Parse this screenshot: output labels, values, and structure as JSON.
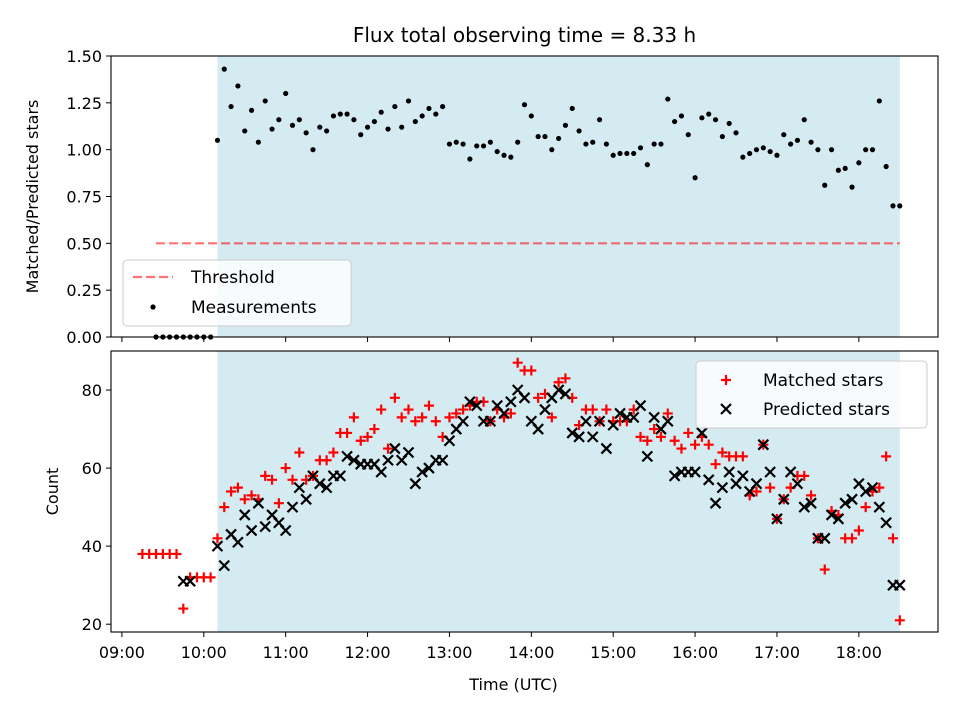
{
  "title": "Flux total observing time = 8.33 h",
  "colors": {
    "span": "#add8e6",
    "threshold": "#ff0000",
    "measurement": "#000000",
    "matched": "#ff0000",
    "predicted": "#000000"
  },
  "chart_data": [
    {
      "type": "scatter",
      "ylabel": "Matched/Predicted stars",
      "ylim": [
        0,
        1.5
      ],
      "yticks": [
        "0.00",
        "0.25",
        "0.50",
        "0.75",
        "1.00",
        "1.25",
        "1.50"
      ],
      "shaded_span": {
        "start": "10:10",
        "end": "18:30"
      },
      "threshold": {
        "label": "Threshold",
        "value": 0.5,
        "x_start": "09:25",
        "x_end": "18:30"
      },
      "legend_position": "lower-left",
      "series": [
        {
          "name": "Measurements",
          "x": [
            "09:25",
            "09:30",
            "09:35",
            "09:40",
            "09:45",
            "09:50",
            "09:55",
            "10:00",
            "10:05",
            "10:10",
            "10:15",
            "10:20",
            "10:25",
            "10:30",
            "10:35",
            "10:40",
            "10:45",
            "10:50",
            "10:55",
            "11:00",
            "11:05",
            "11:10",
            "11:15",
            "11:20",
            "11:25",
            "11:30",
            "11:35",
            "11:40",
            "11:45",
            "11:50",
            "11:55",
            "12:00",
            "12:05",
            "12:10",
            "12:15",
            "12:20",
            "12:25",
            "12:30",
            "12:35",
            "12:40",
            "12:45",
            "12:50",
            "12:55",
            "13:00",
            "13:05",
            "13:10",
            "13:15",
            "13:20",
            "13:25",
            "13:30",
            "13:35",
            "13:40",
            "13:45",
            "13:50",
            "13:55",
            "14:00",
            "14:05",
            "14:10",
            "14:15",
            "14:20",
            "14:25",
            "14:30",
            "14:35",
            "14:40",
            "14:45",
            "14:50",
            "14:55",
            "15:00",
            "15:05",
            "15:10",
            "15:15",
            "15:20",
            "15:25",
            "15:30",
            "15:35",
            "15:40",
            "15:45",
            "15:50",
            "15:55",
            "16:00",
            "16:05",
            "16:10",
            "16:15",
            "16:20",
            "16:25",
            "16:30",
            "16:35",
            "16:40",
            "16:45",
            "16:50",
            "16:55",
            "17:00",
            "17:05",
            "17:10",
            "17:15",
            "17:20",
            "17:25",
            "17:30",
            "17:35",
            "17:40",
            "17:45",
            "17:50",
            "17:55",
            "18:00",
            "18:05",
            "18:10",
            "18:15",
            "18:20",
            "18:25",
            "18:30"
          ],
          "y": [
            0,
            0,
            0,
            0,
            0,
            0,
            0,
            0,
            0,
            1.05,
            1.43,
            1.23,
            1.34,
            1.1,
            1.21,
            1.04,
            1.26,
            1.11,
            1.16,
            1.3,
            1.13,
            1.16,
            1.09,
            1.0,
            1.12,
            1.1,
            1.18,
            1.19,
            1.19,
            1.16,
            1.08,
            1.12,
            1.15,
            1.2,
            1.11,
            1.23,
            1.12,
            1.26,
            1.15,
            1.18,
            1.22,
            1.19,
            1.23,
            1.03,
            1.04,
            1.03,
            0.95,
            1.02,
            1.02,
            1.04,
            0.99,
            0.97,
            0.96,
            1.04,
            1.24,
            1.18,
            1.07,
            1.07,
            1.0,
            1.06,
            1.13,
            1.22,
            1.1,
            1.03,
            1.04,
            1.16,
            1.03,
            0.97,
            0.98,
            0.98,
            0.98,
            1.01,
            0.92,
            1.03,
            1.03,
            1.27,
            1.15,
            1.18,
            1.08,
            0.85,
            1.17,
            1.19,
            1.16,
            1.07,
            1.14,
            1.09,
            0.96,
            0.98,
            1.0,
            1.01,
            0.99,
            0.97,
            1.08,
            1.03,
            1.05,
            1.16,
            1.04,
            1.0,
            0.81,
            1.0,
            0.89,
            0.9,
            0.8,
            0.93,
            1.0,
            1.0,
            1.26,
            0.91,
            0.7,
            0.7
          ]
        }
      ]
    },
    {
      "type": "scatter",
      "xlabel": "Time (UTC)",
      "ylabel": "Count",
      "ylim": [
        18,
        90
      ],
      "yticks": [
        "20",
        "40",
        "60",
        "80"
      ],
      "xticks": [
        "09:00",
        "10:00",
        "11:00",
        "12:00",
        "13:00",
        "14:00",
        "15:00",
        "16:00",
        "17:00",
        "18:00"
      ],
      "shaded_span": {
        "start": "10:10",
        "end": "18:30"
      },
      "legend_position": "upper-right",
      "series": [
        {
          "name": "Matched stars",
          "x": [
            "09:15",
            "09:20",
            "09:25",
            "09:30",
            "09:35",
            "09:40",
            "09:45",
            "09:50",
            "09:55",
            "10:00",
            "10:05",
            "10:10",
            "10:15",
            "10:20",
            "10:25",
            "10:30",
            "10:35",
            "10:40",
            "10:45",
            "10:50",
            "10:55",
            "11:00",
            "11:05",
            "11:10",
            "11:15",
            "11:20",
            "11:25",
            "11:30",
            "11:35",
            "11:40",
            "11:45",
            "11:50",
            "11:55",
            "12:00",
            "12:05",
            "12:10",
            "12:15",
            "12:20",
            "12:25",
            "12:30",
            "12:35",
            "12:40",
            "12:45",
            "12:50",
            "12:55",
            "13:00",
            "13:05",
            "13:10",
            "13:15",
            "13:20",
            "13:25",
            "13:30",
            "13:35",
            "13:40",
            "13:45",
            "13:50",
            "13:55",
            "14:00",
            "14:05",
            "14:10",
            "14:15",
            "14:20",
            "14:25",
            "14:30",
            "14:35",
            "14:40",
            "14:45",
            "14:50",
            "14:55",
            "15:00",
            "15:05",
            "15:10",
            "15:15",
            "15:20",
            "15:25",
            "15:30",
            "15:35",
            "15:40",
            "15:45",
            "15:50",
            "15:55",
            "16:00",
            "16:05",
            "16:10",
            "16:15",
            "16:20",
            "16:25",
            "16:30",
            "16:35",
            "16:40",
            "16:45",
            "16:50",
            "16:55",
            "17:00",
            "17:05",
            "17:10",
            "17:15",
            "17:20",
            "17:25",
            "17:30",
            "17:35",
            "17:40",
            "17:45",
            "17:50",
            "17:55",
            "18:00",
            "18:05",
            "18:10",
            "18:15",
            "18:20",
            "18:25",
            "18:30"
          ],
          "y": [
            38,
            38,
            38,
            38,
            38,
            38,
            24,
            32,
            32,
            32,
            32,
            42,
            50,
            54,
            55,
            52,
            53,
            52,
            58,
            57,
            51,
            60,
            57,
            64,
            57,
            58,
            62,
            62,
            64,
            69,
            69,
            73,
            67,
            68,
            70,
            75,
            65,
            78,
            73,
            75,
            72,
            73,
            76,
            72,
            68,
            73,
            74,
            75,
            76,
            77,
            77,
            72,
            75,
            73,
            74,
            87,
            85,
            85,
            78,
            79,
            73,
            82,
            83,
            78,
            71,
            75,
            75,
            72,
            75,
            72,
            72,
            72,
            75,
            68,
            67,
            70,
            68,
            74,
            67,
            65,
            69,
            66,
            68,
            66,
            61,
            64,
            63,
            63,
            63,
            53,
            54,
            66,
            55,
            47,
            52,
            55,
            58,
            58,
            53,
            42,
            34,
            49,
            48,
            42,
            42,
            44,
            50,
            54,
            55,
            63,
            42,
            21
          ]
        },
        {
          "name": "Predicted stars",
          "x": [
            "09:45",
            "09:50",
            "10:10",
            "10:15",
            "10:20",
            "10:25",
            "10:30",
            "10:35",
            "10:40",
            "10:45",
            "10:50",
            "10:55",
            "11:00",
            "11:05",
            "11:10",
            "11:15",
            "11:20",
            "11:25",
            "11:30",
            "11:35",
            "11:40",
            "11:45",
            "11:50",
            "11:55",
            "12:00",
            "12:05",
            "12:10",
            "12:15",
            "12:20",
            "12:25",
            "12:30",
            "12:35",
            "12:40",
            "12:45",
            "12:50",
            "12:55",
            "13:00",
            "13:05",
            "13:10",
            "13:15",
            "13:20",
            "13:25",
            "13:30",
            "13:35",
            "13:40",
            "13:45",
            "13:50",
            "13:55",
            "14:00",
            "14:05",
            "14:10",
            "14:15",
            "14:20",
            "14:25",
            "14:30",
            "14:35",
            "14:40",
            "14:45",
            "14:50",
            "14:55",
            "15:00",
            "15:05",
            "15:10",
            "15:15",
            "15:20",
            "15:25",
            "15:30",
            "15:35",
            "15:40",
            "15:45",
            "15:50",
            "15:55",
            "16:00",
            "16:05",
            "16:10",
            "16:15",
            "16:20",
            "16:25",
            "16:30",
            "16:35",
            "16:40",
            "16:45",
            "16:50",
            "16:55",
            "17:00",
            "17:05",
            "17:10",
            "17:15",
            "17:20",
            "17:25",
            "17:30",
            "17:35",
            "17:40",
            "17:45",
            "17:50",
            "17:55",
            "18:00",
            "18:05",
            "18:10",
            "18:15",
            "18:20",
            "18:25",
            "18:30"
          ],
          "y": [
            31,
            31,
            40,
            35,
            43,
            41,
            48,
            44,
            51,
            45,
            48,
            46,
            44,
            50,
            55,
            52,
            58,
            56,
            55,
            58,
            58,
            63,
            62,
            61,
            61,
            61,
            59,
            62,
            65,
            62,
            64,
            56,
            59,
            60,
            62,
            62,
            67,
            70,
            72,
            77,
            76,
            72,
            72,
            76,
            74,
            77,
            80,
            78,
            72,
            70,
            75,
            78,
            80,
            79,
            69,
            68,
            72,
            68,
            72,
            65,
            71,
            74,
            73,
            73,
            76,
            63,
            73,
            70,
            72,
            58,
            59,
            59,
            59,
            69,
            57,
            51,
            55,
            59,
            56,
            58,
            54,
            56,
            66,
            59,
            47,
            52,
            59,
            56,
            50,
            51,
            42,
            42,
            48,
            47,
            51,
            52,
            56,
            54,
            55,
            50,
            46,
            30,
            30
          ]
        }
      ]
    }
  ]
}
